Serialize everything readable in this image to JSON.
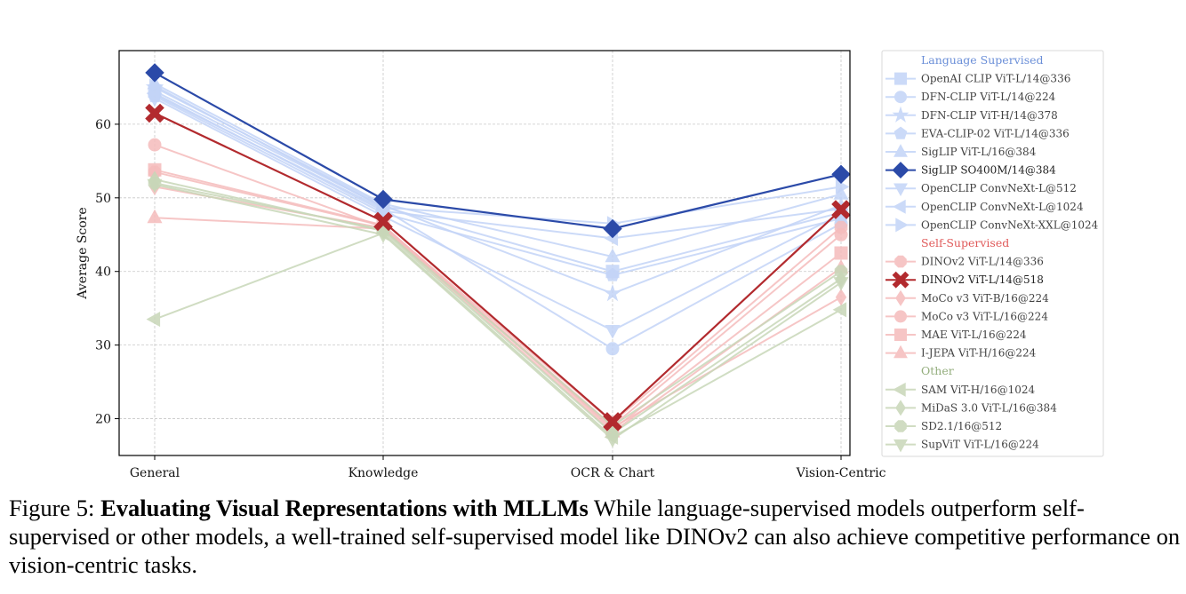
{
  "chart_data": {
    "type": "line",
    "xlabel": "",
    "ylabel": "Average Score",
    "categories": [
      "General",
      "Knowledge",
      "OCR & Chart",
      "Vision-Centric"
    ],
    "ylim": [
      15,
      70
    ],
    "yticks": [
      20,
      30,
      40,
      50,
      60
    ],
    "grid": true,
    "legend_position": "right",
    "groups": [
      {
        "label": "Language Supervised",
        "color": "#6b8fd8"
      },
      {
        "label": "Self-Supervised",
        "color": "#e05a5a"
      },
      {
        "label": "Other",
        "color": "#93ad7c"
      }
    ],
    "series": [
      {
        "name": "OpenAI CLIP ViT-L/14@336",
        "group": 0,
        "marker": "square",
        "highlight": false,
        "values": [
          64.5,
          48.8,
          40.0,
          48.0
        ]
      },
      {
        "name": "DFN-CLIP ViT-L/14@224",
        "group": 0,
        "marker": "circle",
        "highlight": false,
        "values": [
          64.0,
          48.5,
          29.5,
          46.5
        ]
      },
      {
        "name": "DFN-CLIP ViT-H/14@378",
        "group": 0,
        "marker": "star",
        "highlight": false,
        "values": [
          65.0,
          49.0,
          37.0,
          49.0
        ]
      },
      {
        "name": "EVA-CLIP-02 ViT-L/14@336",
        "group": 0,
        "marker": "pentagon",
        "highlight": false,
        "values": [
          63.8,
          47.9,
          39.5,
          47.2
        ]
      },
      {
        "name": "SigLIP ViT-L/16@384",
        "group": 0,
        "marker": "triangle-up",
        "highlight": false,
        "values": [
          65.5,
          49.2,
          42.0,
          50.5
        ]
      },
      {
        "name": "SigLIP SO400M/14@384",
        "group": 0,
        "marker": "diamond",
        "highlight": true,
        "values": [
          67.0,
          49.8,
          45.8,
          53.2
        ]
      },
      {
        "name": "OpenCLIP ConvNeXt-L@512",
        "group": 0,
        "marker": "triangle-down",
        "highlight": false,
        "values": [
          63.5,
          47.5,
          32.0,
          47.8
        ]
      },
      {
        "name": "OpenCLIP ConvNeXt-L@1024",
        "group": 0,
        "marker": "triangle-left",
        "highlight": false,
        "values": [
          64.2,
          48.2,
          44.5,
          48.5
        ]
      },
      {
        "name": "OpenCLIP ConvNeXt-XXL@1024",
        "group": 0,
        "marker": "triangle-right",
        "highlight": false,
        "values": [
          65.2,
          48.7,
          46.5,
          51.5
        ]
      },
      {
        "name": "DINOv2 ViT-L/14@336",
        "group": 1,
        "marker": "octagon",
        "highlight": false,
        "values": [
          53.5,
          46.2,
          19.5,
          46.0
        ]
      },
      {
        "name": "DINOv2 ViT-L/14@518",
        "group": 1,
        "marker": "x",
        "highlight": true,
        "values": [
          61.5,
          46.8,
          19.6,
          48.4
        ]
      },
      {
        "name": "MoCo v3 ViT-B/16@224",
        "group": 1,
        "marker": "diamond-thin",
        "highlight": false,
        "values": [
          51.5,
          45.9,
          18.8,
          36.5
        ]
      },
      {
        "name": "MoCo v3 ViT-L/16@224",
        "group": 1,
        "marker": "circle",
        "highlight": false,
        "values": [
          57.2,
          46.0,
          19.0,
          45.0
        ]
      },
      {
        "name": "MAE ViT-L/16@224",
        "group": 1,
        "marker": "square",
        "highlight": false,
        "values": [
          53.8,
          46.3,
          18.5,
          42.5
        ]
      },
      {
        "name": "I-JEPA ViT-H/16@224",
        "group": 1,
        "marker": "triangle-up",
        "highlight": false,
        "values": [
          47.3,
          45.8,
          18.2,
          40.5
        ]
      },
      {
        "name": "SAM ViT-H/16@1024",
        "group": 2,
        "marker": "triangle-left",
        "highlight": false,
        "values": [
          33.5,
          45.2,
          17.5,
          34.8
        ]
      },
      {
        "name": "MiDaS 3.0 ViT-L/16@384",
        "group": 2,
        "marker": "diamond-thin",
        "highlight": false,
        "values": [
          52.5,
          45.5,
          18.0,
          39.0
        ]
      },
      {
        "name": "SD2.1/16@512",
        "group": 2,
        "marker": "octagon",
        "highlight": false,
        "values": [
          52.0,
          45.7,
          19.0,
          40.0
        ]
      },
      {
        "name": "SupViT ViT-L/16@224",
        "group": 2,
        "marker": "triangle-down",
        "highlight": false,
        "values": [
          51.8,
          45.0,
          17.2,
          38.5
        ]
      }
    ]
  },
  "colors": {
    "language_light": "#c3d4f7",
    "language_strong": "#2b4aa8",
    "self_light": "#f5bcbc",
    "self_strong": "#b22a2e",
    "other_light": "#c8d7b8"
  },
  "caption": {
    "prefix": "Figure 5: ",
    "title": "Evaluating Visual Representations with MLLMs",
    "body": " While language-supervised models outperform self-supervised or other models, a well-trained self-supervised model like DINOv2 can also achieve competitive performance on vision-centric tasks."
  }
}
